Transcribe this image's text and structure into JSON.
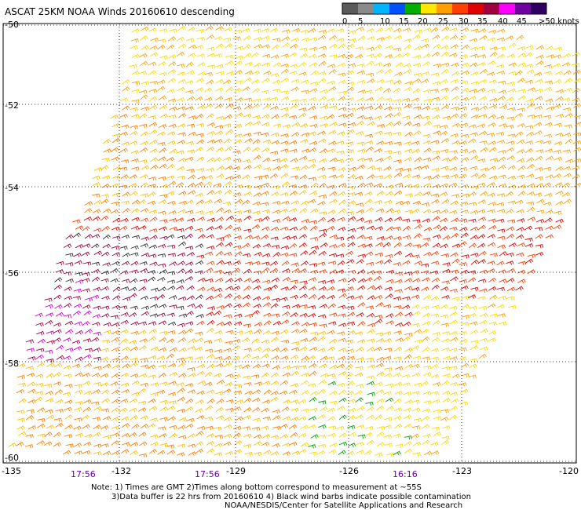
{
  "title": "ASCAT 25KM NOAA Winds 20160610 descending",
  "colorbar": {
    "labels": [
      "0",
      "5",
      "10",
      "15",
      "20",
      "25",
      "30",
      "35",
      "40",
      "45",
      ">50 knots"
    ],
    "colors": [
      "#5a5a5a",
      "#8a8a8a",
      "#00b4ff",
      "#0050ff",
      "#00b000",
      "#ffe800",
      "#ffa000",
      "#ff4000",
      "#e00000",
      "#a00040",
      "#ff00ff",
      "#7000a0",
      "#300060"
    ]
  },
  "lat_labels": [
    "-50",
    "-52",
    "-54",
    "-56",
    "-58",
    "-60"
  ],
  "lon_labels": [
    "-135",
    "-132",
    "-129",
    "-126",
    "-123",
    "-120"
  ],
  "time_labels": [
    "17:56",
    "17:56",
    "16:16"
  ],
  "notes": [
    "Note: 1) Times are GMT 2)Times along bottom correspond to measurement at ~55S",
    "3)Data buffer is 22 hrs from 20160610 4) Black wind barbs indicate possible contamination",
    "NOAA/NESDIS/Center for Satellite Applications and Research"
  ]
}
